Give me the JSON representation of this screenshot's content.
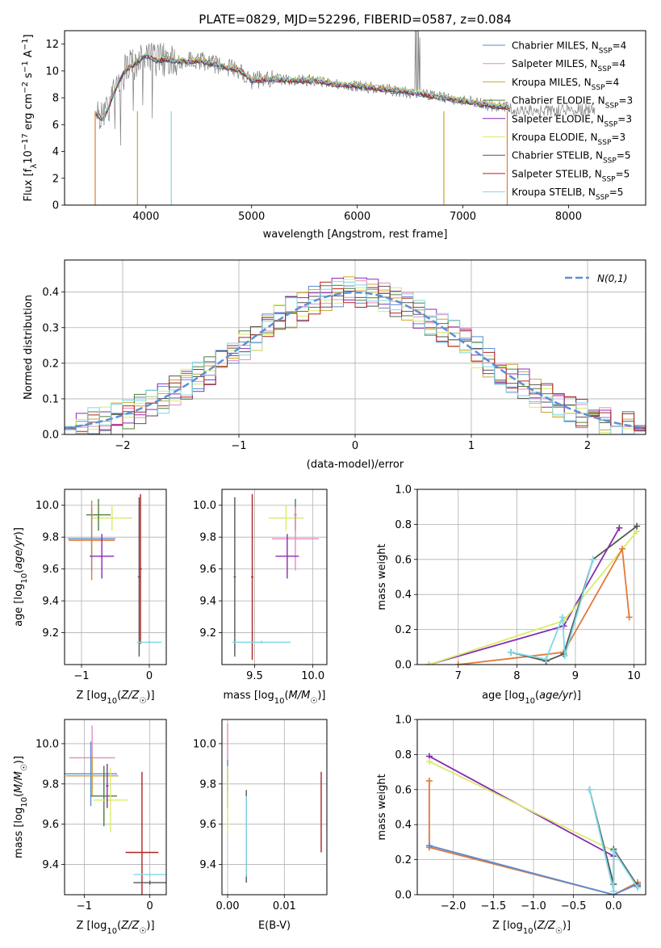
{
  "figure": {
    "title": "PLATE=0829, MJD=52296, FIBERID=0587, z=0.084"
  },
  "chart_data": [
    {
      "id": "spectrum",
      "type": "line",
      "title": "PLATE=0829, MJD=52296, FIBERID=0587, z=0.084",
      "xlabel": "wavelength [Angstrom, rest frame]",
      "ylabel": "Flux [f_λ 10^-17 erg cm^-2 s^-1 A^-1]",
      "xlim": [
        3230,
        8730
      ],
      "ylim": [
        0,
        13
      ],
      "xticks": [
        4000,
        5000,
        6000,
        7000,
        8000
      ],
      "yticks": [
        0,
        2,
        4,
        6,
        8,
        10,
        12
      ],
      "grid": false,
      "legend_position": "right",
      "series": [
        {
          "name": "Chabrier MILES, N_SSP=4",
          "color": "#5b8bd6"
        },
        {
          "name": "Salpeter MILES, N_SSP=4",
          "color": "#e88bc0"
        },
        {
          "name": "Kroupa MILES, N_SSP=4",
          "color": "#cfa230"
        },
        {
          "name": "Chabrier ELODIE, N_SSP=3",
          "color": "#4d7c3a"
        },
        {
          "name": "Salpeter ELODIE, N_SSP=3",
          "color": "#8a2bb0"
        },
        {
          "name": "Kroupa ELODIE, N_SSP=3",
          "color": "#d8ec6a"
        },
        {
          "name": "Chabrier STELIB, N_SSP=5",
          "color": "#555555"
        },
        {
          "name": "Salpeter STELIB, N_SSP=5",
          "color": "#b22222"
        },
        {
          "name": "Kroupa STELIB, N_SSP=5",
          "color": "#7fd8e6"
        }
      ],
      "data_color": "#808080",
      "profile_x": [
        3500,
        3600,
        3700,
        3800,
        3900,
        4000,
        4100,
        4200,
        4300,
        4500,
        4700,
        4900,
        5000,
        5200,
        5400,
        5600,
        5800,
        6000,
        6200,
        6400,
        6600,
        6800,
        7000,
        7200,
        7400,
        7500,
        7800,
        8000
      ],
      "profile_y": [
        7.0,
        6.4,
        8.5,
        10.0,
        10.6,
        11.2,
        10.8,
        10.9,
        10.7,
        10.8,
        10.4,
        10.0,
        9.3,
        9.4,
        9.3,
        9.3,
        9.0,
        8.9,
        8.7,
        8.5,
        8.3,
        8.0,
        7.8,
        7.5,
        7.3,
        7.1,
        7.0,
        7.1
      ]
    },
    {
      "id": "residuals",
      "type": "histogram",
      "xlabel": "(data-model)/error",
      "ylabel": "Normed distribution",
      "xlim": [
        -2.5,
        2.5
      ],
      "ylim": [
        0,
        0.49
      ],
      "xticks": [
        -2,
        -1,
        0,
        1,
        2
      ],
      "yticks": [
        0.0,
        0.1,
        0.2,
        0.3,
        0.4
      ],
      "grid": true,
      "legend_position": "top-right",
      "gaussian_label": "N(0,1)",
      "gaussian_color": "#5b8fd6"
    },
    {
      "id": "age_vs_Z",
      "type": "errorbar",
      "xlabel": "Z [log10(Z/Z☉)]",
      "ylabel": "age [log10(age/yr)]",
      "xlim": [
        -1.25,
        0.25
      ],
      "ylim": [
        9.0,
        10.1
      ],
      "xticks": [
        -1,
        0
      ],
      "yticks": [
        9.2,
        9.4,
        9.6,
        9.8,
        10.0
      ],
      "points": [
        {
          "x": -0.55,
          "xerr": 0.3,
          "y": 9.92,
          "yerr": 0.08,
          "color": "#d8ec6a"
        },
        {
          "x": -0.75,
          "xerr": 0.18,
          "y": 9.94,
          "yerr": 0.1,
          "color": "#4d7c3a"
        },
        {
          "x": -0.85,
          "xerr": 0.35,
          "y": 9.79,
          "yerr": 0.2,
          "color": "#5b8bd6"
        },
        {
          "x": -0.85,
          "xerr": 0.34,
          "y": 9.78,
          "yerr": 0.25,
          "color": "#e07a3a"
        },
        {
          "x": -0.7,
          "xerr": 0.18,
          "y": 9.68,
          "yerr": 0.14,
          "color": "#8a2bb0"
        },
        {
          "x": -0.15,
          "xerr": 0.02,
          "y": 9.55,
          "yerr": 0.5,
          "color": "#555555"
        },
        {
          "x": -0.13,
          "xerr": 0.02,
          "y": 9.6,
          "yerr": 0.47,
          "color": "#b22222"
        },
        {
          "x": 0.0,
          "xerr": 0.18,
          "y": 9.14,
          "yerr": 0.01,
          "color": "#7fd8e6"
        }
      ]
    },
    {
      "id": "age_vs_mass",
      "type": "errorbar",
      "xlabel": "mass [log10(M/M☉)]",
      "ylabel": "",
      "xlim": [
        9.22,
        10.12
      ],
      "ylim": [
        9.0,
        10.1
      ],
      "xticks": [
        9.5,
        10.0
      ],
      "yticks": [
        9.2,
        9.4,
        9.6,
        9.8,
        10.0
      ],
      "points": [
        {
          "x": 9.77,
          "xerr": 0.15,
          "y": 9.92,
          "yerr": 0.08,
          "color": "#d8ec6a"
        },
        {
          "x": 9.85,
          "xerr": 0.01,
          "y": 9.94,
          "yerr": 0.1,
          "color": "#4d7c3a"
        },
        {
          "x": 9.85,
          "xerr": 0.2,
          "y": 9.79,
          "yerr": 0.2,
          "color": "#e88bc0"
        },
        {
          "x": 9.78,
          "xerr": 0.1,
          "y": 9.68,
          "yerr": 0.14,
          "color": "#8a2bb0"
        },
        {
          "x": 9.33,
          "xerr": 0.01,
          "y": 9.55,
          "yerr": 0.5,
          "color": "#555555"
        },
        {
          "x": 9.48,
          "xerr": 0.01,
          "y": 9.55,
          "yerr": 0.52,
          "color": "#b22222"
        },
        {
          "x": 9.56,
          "xerr": 0.25,
          "y": 9.14,
          "yerr": 0.01,
          "color": "#7fd8e6"
        }
      ]
    },
    {
      "id": "weight_vs_age",
      "type": "line",
      "xlabel": "age [log10(age/yr)]",
      "ylabel": "mass weight",
      "xlim": [
        6.3,
        10.2
      ],
      "ylim": [
        0,
        1.0
      ],
      "xticks": [
        7,
        8,
        9,
        10
      ],
      "yticks": [
        0.0,
        0.2,
        0.4,
        0.6,
        0.8,
        1.0
      ],
      "series": [
        {
          "x": [
            6.5,
            8.8,
            9.75
          ],
          "y": [
            0.0,
            0.22,
            0.78
          ],
          "color": "#8a2bb0"
        },
        {
          "x": [
            6.5,
            8.8,
            10.05
          ],
          "y": [
            0.0,
            0.25,
            0.76
          ],
          "color": "#d8ec6a"
        },
        {
          "x": [
            7.0,
            8.8,
            9.8,
            9.92
          ],
          "y": [
            0.0,
            0.07,
            0.66,
            0.27
          ],
          "color": "#e07a3a"
        },
        {
          "x": [
            7.9,
            8.5,
            8.8,
            9.3,
            10.05
          ],
          "y": [
            0.07,
            0.02,
            0.06,
            0.6,
            0.79
          ],
          "color": "#555555"
        },
        {
          "x": [
            7.9,
            8.5,
            8.78,
            8.82,
            9.3
          ],
          "y": [
            0.07,
            0.03,
            0.27,
            0.05,
            0.6
          ],
          "color": "#7fd8e6"
        }
      ]
    },
    {
      "id": "mass_vs_Z",
      "type": "errorbar",
      "xlabel": "Z [log10(Z/Z☉)]",
      "ylabel": "mass [log10(M/M☉)]",
      "xlim": [
        -1.3,
        0.25
      ],
      "ylim": [
        9.25,
        10.12
      ],
      "xticks": [
        -1,
        0
      ],
      "yticks": [
        9.4,
        9.6,
        9.8,
        10.0
      ],
      "points": [
        {
          "x": -0.88,
          "xerr": 0.35,
          "y": 9.93,
          "yerr": 0.16,
          "color": "#e88bc0"
        },
        {
          "x": -0.9,
          "xerr": 0.4,
          "y": 9.85,
          "yerr": 0.16,
          "color": "#5b8bd6"
        },
        {
          "x": -0.88,
          "xerr": 0.4,
          "y": 9.84,
          "yerr": 0.1,
          "color": "#cfa230"
        },
        {
          "x": -0.7,
          "xerr": 0.2,
          "y": 9.74,
          "yerr": 0.15,
          "color": "#4d7c3a"
        },
        {
          "x": -0.6,
          "xerr": 0.26,
          "y": 9.72,
          "yerr": 0.16,
          "color": "#d8ec6a"
        },
        {
          "x": -0.65,
          "xerr": 0.02,
          "y": 9.79,
          "yerr": 0.11,
          "color": "#8a2bb0"
        },
        {
          "x": -0.12,
          "xerr": 0.25,
          "y": 9.46,
          "yerr": 0.4,
          "color": "#b22222"
        },
        {
          "x": 0.0,
          "xerr": 0.25,
          "y": 9.31,
          "yerr": 0.01,
          "color": "#555555"
        },
        {
          "x": 0.0,
          "xerr": 0.25,
          "y": 9.35,
          "yerr": 0.01,
          "color": "#7fd8e6"
        }
      ]
    },
    {
      "id": "mass_vs_ebv",
      "type": "errorbar",
      "xlabel": "E(B-V)",
      "ylabel": "",
      "xlim": [
        -0.001,
        0.0175
      ],
      "ylim": [
        9.25,
        10.12
      ],
      "xticks": [
        0.0,
        0.01
      ],
      "yticks": [
        9.4,
        9.6,
        9.8,
        10.0
      ],
      "points": [
        {
          "x": 0.0,
          "xerr": 0,
          "y": 9.93,
          "yerr": 0.17,
          "color": "#e88bc0"
        },
        {
          "x": 0.0,
          "xerr": 0,
          "y": 9.8,
          "yerr": 0.12,
          "color": "#5b8bd6"
        },
        {
          "x": 0.0,
          "xerr": 0,
          "y": 9.72,
          "yerr": 0.17,
          "color": "#d8ec6a"
        },
        {
          "x": 0.0033,
          "xerr": 0,
          "y": 9.54,
          "yerr": 0.23,
          "color": "#555555"
        },
        {
          "x": 0.0033,
          "xerr": 0,
          "y": 9.54,
          "yerr": 0.2,
          "color": "#7fd8e6"
        },
        {
          "x": 0.0165,
          "xerr": 0,
          "y": 9.66,
          "yerr": 0.2,
          "color": "#b22222"
        }
      ]
    },
    {
      "id": "weight_vs_Z",
      "type": "line",
      "xlabel": "Z [log10(Z/Z☉)]",
      "ylabel": "mass weight",
      "xlim": [
        -2.45,
        0.4
      ],
      "ylim": [
        0,
        1.0
      ],
      "xticks": [
        -2.0,
        -1.5,
        -1.0,
        -0.5,
        0.0
      ],
      "yticks": [
        0.0,
        0.2,
        0.4,
        0.6,
        0.8,
        1.0
      ],
      "series": [
        {
          "x": [
            -2.3,
            0.0
          ],
          "y": [
            0.79,
            0.22
          ],
          "color": "#8a2bb0"
        },
        {
          "x": [
            -2.3,
            0.0
          ],
          "y": [
            0.76,
            0.25
          ],
          "color": "#d8ec6a"
        },
        {
          "x": [
            -2.3,
            -2.3,
            0.0,
            0.3
          ],
          "y": [
            0.65,
            0.27,
            0.0,
            0.07
          ],
          "color": "#e07a3a"
        },
        {
          "x": [
            -2.3,
            0.0,
            0.3
          ],
          "y": [
            0.28,
            0.0,
            0.06
          ],
          "color": "#5b8bd6"
        },
        {
          "x": [
            -0.3,
            0.0,
            0.0,
            0.3
          ],
          "y": [
            0.6,
            0.06,
            0.26,
            0.05
          ],
          "color": "#555555"
        },
        {
          "x": [
            -0.3,
            0.0,
            0.0,
            0.3
          ],
          "y": [
            0.6,
            0.02,
            0.25,
            0.04
          ],
          "color": "#7fd8e6"
        }
      ]
    }
  ]
}
